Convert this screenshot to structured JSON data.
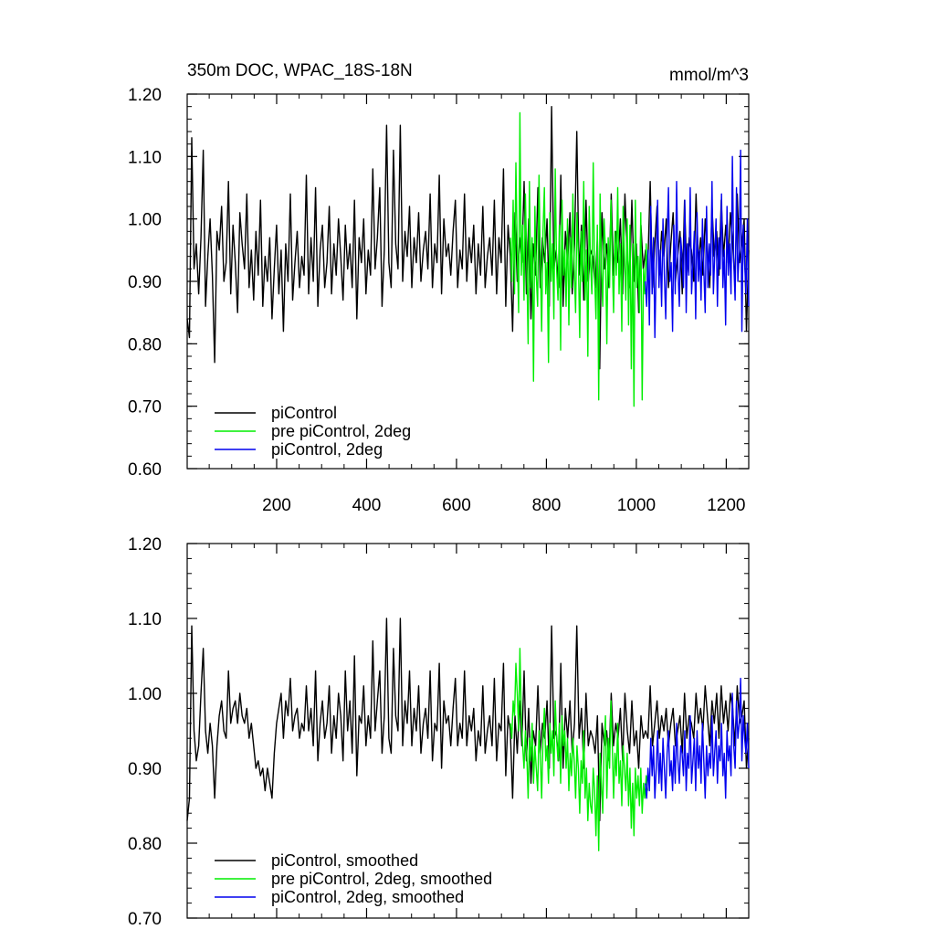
{
  "chart_data": [
    {
      "type": "line",
      "title": "350m DOC, WPAC_18S-18N",
      "units": "mmol/m^3",
      "xlabel": "",
      "ylabel": "",
      "xlim": [
        1,
        1250
      ],
      "ylim": [
        0.6,
        1.2
      ],
      "x_ticks": [
        200,
        400,
        600,
        800,
        1000,
        1200
      ],
      "x_tick_labels": [
        "200",
        "400",
        "600",
        "800",
        "1000",
        "1200"
      ],
      "y_ticks": [
        0.6,
        0.7,
        0.8,
        0.9,
        1.0,
        1.1,
        1.2
      ],
      "y_tick_labels": [
        "0.60",
        "0.70",
        "0.80",
        "0.90",
        "1.00",
        "1.10",
        "1.20"
      ],
      "legend_position": "bottom-left",
      "series": [
        {
          "name": "piControl",
          "color": "#000000",
          "x_range": [
            1,
            1250
          ],
          "spacing": 5,
          "values": [
            0.84,
            0.81,
            1.13,
            0.92,
            0.96,
            0.88,
            0.97,
            1.11,
            0.86,
            0.94,
            1.0,
            0.91,
            0.77,
            0.98,
            0.95,
            1.02,
            0.9,
            0.93,
            1.06,
            0.88,
            0.99,
            0.93,
            0.85,
            1.01,
            0.96,
            0.92,
            1.04,
            0.89,
            0.95,
            0.87,
            0.98,
            0.91,
            1.03,
            0.86,
            0.94,
            0.9,
            0.97,
            0.84,
            0.92,
            0.99,
            0.88,
            0.95,
            0.82,
            0.96,
            0.9,
            1.04,
            0.87,
            0.93,
            0.98,
            0.89,
            0.94,
            0.91,
            1.07,
            0.88,
            0.97,
            0.9,
            1.05,
            0.86,
            0.95,
            0.99,
            0.89,
            0.93,
            1.02,
            0.88,
            0.96,
            0.91,
            1.0,
            0.94,
            0.87,
            0.99,
            0.92,
            0.96,
            0.89,
            1.03,
            0.84,
            0.97,
            0.93,
            1.0,
            0.88,
            0.95,
            0.91,
            1.08,
            0.92,
            0.97,
            1.05,
            0.86,
            0.95,
            1.15,
            0.93,
            0.89,
            1.11,
            0.96,
            0.92,
            1.15,
            0.9,
            0.98,
            0.94,
            1.02,
            0.89,
            0.97,
            0.93,
            1.01,
            0.9,
            0.95,
            0.98,
            0.92,
            1.04,
            0.89,
            0.96,
            0.93,
            1.07,
            0.88,
            1.0,
            0.94,
            0.96,
            0.91,
            0.98,
            1.03,
            0.89,
            0.95,
            0.92,
            1.04,
            0.9,
            0.97,
            0.93,
            0.99,
            0.88,
            0.96,
            0.91,
            1.02,
            0.89,
            0.94,
            0.97,
            0.91,
            1.03,
            0.88,
            0.97,
            0.93,
            1.08,
            0.86,
            0.99,
            0.94,
            0.82,
            1.01,
            0.9,
            0.97,
            0.93,
            1.06,
            0.88,
            1.0,
            0.84,
            0.96,
            0.91,
            1.05,
            0.89,
            0.97,
            0.93,
            1.0,
            0.86,
            1.18,
            0.92,
            0.95,
            0.89,
            1.07,
            0.86,
            0.98,
            0.93,
            1.01,
            0.88,
            0.96,
            1.14,
            0.91,
            0.99,
            0.87,
            1.03,
            0.9,
            0.95,
            0.94,
            0.89,
            0.97,
            0.76,
            1.01,
            0.92,
            0.96,
            0.89,
            1.04,
            0.91,
            0.98,
            0.93,
            1.0,
            0.88,
            1.04,
            0.94,
            0.89,
            1.03,
            0.9,
            0.96,
            0.85,
            0.99,
            0.92,
            0.95,
            0.93,
            1.06,
            0.89,
            0.96,
            1.02,
            0.91,
            0.98,
            0.94,
            1.0,
            0.89,
            0.96,
            1.01,
            0.9,
            0.94,
            0.98,
            0.88,
            1.03,
            0.91,
            0.97,
            0.95,
            0.9,
            1.04,
            0.93,
            0.97,
            0.91,
            1.0,
            0.95,
            0.89,
            1.02,
            0.94,
            0.98,
            0.91,
            1.03,
            0.94,
            0.99,
            0.93,
            1.01,
            0.96,
            0.9,
            1.04,
            0.93,
            0.96,
            1.0,
            0.82,
            0.95
          ]
        },
        {
          "name": "pre piControl, 2deg",
          "color": "#00ee00",
          "x_range": [
            720,
            1025
          ],
          "spacing": 3,
          "values": [
            0.97,
            0.9,
            1.03,
            0.88,
            1.09,
            0.95,
            0.85,
            1.17,
            0.91,
            0.99,
            0.87,
            1.04,
            0.93,
            0.8,
            1.06,
            0.89,
            0.97,
            0.74,
            1.02,
            0.91,
            0.86,
            1.07,
            0.94,
            0.82,
            0.98,
            1.05,
            0.88,
            0.93,
            0.77,
            1.01,
            0.9,
            0.96,
            0.84,
            1.08,
            0.92,
            0.87,
            0.99,
            0.79,
            1.03,
            0.91,
            0.95,
            0.86,
            1.0,
            0.83,
            0.97,
            0.89,
            1.04,
            0.92,
            0.85,
            1.01,
            0.94,
            0.81,
            0.98,
            0.9,
            1.06,
            0.87,
            0.95,
            0.78,
            1.02,
            0.93,
            0.88,
            1.09,
            0.91,
            0.84,
            0.99,
            0.71,
            1.04,
            0.92,
            0.86,
            1.0,
            0.95,
            0.8,
            0.97,
            0.89,
            1.03,
            0.93,
            0.85,
            0.98,
            0.91,
            1.05,
            0.88,
            0.96,
            0.82,
            1.02,
            0.94,
            0.87,
            1.0,
            0.83,
            0.99,
            0.76,
            0.96,
            0.7,
            1.03,
            0.89,
            0.94,
            0.85,
            1.01,
            0.71,
            0.92,
            0.88,
            0.96,
            0.9
          ]
        },
        {
          "name": "piControl, 2deg",
          "color": "#0000ee",
          "x_range": [
            1020,
            1250
          ],
          "spacing": 3,
          "values": [
            0.9,
            0.86,
            0.95,
            0.83,
            1.02,
            0.88,
            0.97,
            0.81,
            0.93,
            1.03,
            0.89,
            0.95,
            0.86,
            1.0,
            0.91,
            0.84,
            0.97,
            1.05,
            0.9,
            0.93,
            0.82,
            0.99,
            0.88,
            1.06,
            0.92,
            0.86,
            0.97,
            0.94,
            0.89,
            1.03,
            0.85,
            0.96,
            0.91,
            1.05,
            0.88,
            0.93,
            0.98,
            0.84,
            1.01,
            0.9,
            0.95,
            0.87,
            1.0,
            0.92,
            0.85,
            1.02,
            0.89,
            0.96,
            0.91,
            1.06,
            0.88,
            0.94,
            1.0,
            0.86,
            0.97,
            0.92,
            1.04,
            0.89,
            0.95,
            0.83,
            1.02,
            0.91,
            0.96,
            0.88,
            1.1,
            0.93,
            0.87,
            1.05,
            0.9,
            0.95,
            1.11,
            0.82,
            0.99,
            0.93,
            0.88,
            1.0,
            0.86
          ]
        }
      ],
      "legend": [
        {
          "label": "piControl",
          "color": "#000000"
        },
        {
          "label": "pre piControl, 2deg",
          "color": "#00ee00"
        },
        {
          "label": "piControl, 2deg",
          "color": "#0000ee"
        }
      ]
    },
    {
      "type": "line",
      "title": "",
      "units": "",
      "xlabel": "",
      "ylabel": "",
      "xlim": [
        1,
        1250
      ],
      "ylim": [
        0.7,
        1.2
      ],
      "x_ticks": [
        200,
        400,
        600,
        800,
        1000,
        1200
      ],
      "x_tick_labels": [],
      "y_ticks": [
        0.7,
        0.8,
        0.9,
        1.0,
        1.1,
        1.2
      ],
      "y_tick_labels": [
        "0.70",
        "0.80",
        "0.90",
        "1.00",
        "1.10",
        "1.20"
      ],
      "legend_position": "bottom-left",
      "series": [
        {
          "name": "piControl, smoothed",
          "color": "#000000",
          "x_range": [
            1,
            1250
          ],
          "spacing": 5,
          "values": [
            0.83,
            0.86,
            1.09,
            0.95,
            0.91,
            0.93,
            1.0,
            1.06,
            0.95,
            0.92,
            0.96,
            0.93,
            0.86,
            0.93,
            0.97,
            0.99,
            0.95,
            0.94,
            1.03,
            0.96,
            0.98,
            0.99,
            0.96,
            1.0,
            0.97,
            0.96,
            0.98,
            0.94,
            0.96,
            0.93,
            0.9,
            0.91,
            0.89,
            0.9,
            0.87,
            0.9,
            0.88,
            0.86,
            0.92,
            0.96,
            0.98,
            1.0,
            0.94,
            0.99,
            0.97,
            1.02,
            0.95,
            0.97,
            0.98,
            0.94,
            0.96,
            0.95,
            1.01,
            0.95,
            0.98,
            0.93,
            1.03,
            0.91,
            0.96,
            0.99,
            0.94,
            0.96,
            1.01,
            0.92,
            0.97,
            0.94,
            1.0,
            0.97,
            0.91,
            1.03,
            0.95,
            0.99,
            0.92,
            1.05,
            0.89,
            0.97,
            0.96,
            1.01,
            0.93,
            0.97,
            0.94,
            1.07,
            0.95,
            0.99,
            1.03,
            0.92,
            0.97,
            1.1,
            0.94,
            0.92,
            1.06,
            0.97,
            0.95,
            1.1,
            0.93,
            0.99,
            0.96,
            1.03,
            0.93,
            0.98,
            0.95,
            1.01,
            0.92,
            0.96,
            0.98,
            0.94,
            1.03,
            0.91,
            0.96,
            0.95,
            1.04,
            0.9,
            0.99,
            0.96,
            0.97,
            0.93,
            0.98,
            1.02,
            0.93,
            0.96,
            0.94,
            1.03,
            0.93,
            0.97,
            0.95,
            0.98,
            0.91,
            0.95,
            0.93,
            1.01,
            0.92,
            0.95,
            0.97,
            0.93,
            1.02,
            0.91,
            0.96,
            0.95,
            1.04,
            0.89,
            0.97,
            0.95,
            0.86,
            0.97,
            0.92,
            0.99,
            0.93,
            1.03,
            0.91,
            0.98,
            0.88,
            0.95,
            0.93,
            1.01,
            0.92,
            0.96,
            0.94,
            0.99,
            0.9,
            1.09,
            0.94,
            0.95,
            0.91,
            1.04,
            0.9,
            0.98,
            0.94,
            0.99,
            0.92,
            0.96,
            1.09,
            0.94,
            0.98,
            0.9,
            1.0,
            0.93,
            0.95,
            0.94,
            0.92,
            0.97,
            0.83,
            0.96,
            0.93,
            0.95,
            0.91,
            1.0,
            0.93,
            0.96,
            0.94,
            0.98,
            0.91,
            1.0,
            0.95,
            0.92,
            0.99,
            0.93,
            0.95,
            0.9,
            0.97,
            0.94,
            0.95,
            0.94,
            1.01,
            0.93,
            0.96,
            0.99,
            0.94,
            0.97,
            0.95,
            0.98,
            0.93,
            0.96,
            0.98,
            0.93,
            0.95,
            0.97,
            0.92,
            1.0,
            0.94,
            0.97,
            0.96,
            0.94,
            1.0,
            0.96,
            0.98,
            0.95,
            1.01,
            0.97,
            0.93,
            0.99,
            0.96,
            1.0,
            0.94,
            1.01,
            0.96,
            0.99,
            0.95,
            1.0,
            0.98,
            0.93,
            1.01,
            0.96,
            0.97,
            0.99,
            0.9,
            0.94
          ]
        },
        {
          "name": "pre piControl, 2deg, smoothed",
          "color": "#00ee00",
          "x_range": [
            720,
            1025
          ],
          "spacing": 3,
          "values": [
            0.96,
            0.94,
            0.99,
            0.97,
            1.04,
            1.0,
            0.95,
            1.06,
            0.97,
            0.93,
            0.9,
            0.95,
            0.92,
            0.86,
            0.94,
            0.91,
            0.96,
            0.88,
            0.93,
            0.9,
            0.87,
            0.95,
            0.92,
            0.86,
            0.94,
            0.98,
            0.91,
            0.93,
            0.88,
            0.96,
            0.92,
            0.95,
            0.89,
            0.99,
            0.94,
            0.91,
            0.96,
            0.88,
            0.97,
            0.93,
            0.95,
            0.9,
            0.94,
            0.87,
            0.92,
            0.89,
            0.94,
            0.91,
            0.86,
            0.93,
            0.9,
            0.84,
            0.91,
            0.88,
            0.95,
            0.86,
            0.9,
            0.83,
            0.88,
            0.85,
            0.84,
            0.9,
            0.87,
            0.81,
            0.89,
            0.79,
            0.92,
            0.88,
            0.84,
            0.93,
            0.97,
            0.86,
            0.94,
            0.9,
            0.99,
            0.93,
            0.86,
            0.92,
            0.89,
            0.96,
            0.88,
            0.91,
            0.85,
            0.93,
            0.9,
            0.87,
            0.92,
            0.85,
            0.9,
            0.82,
            0.88,
            0.81,
            0.9,
            0.86,
            0.89,
            0.85,
            0.9,
            0.84,
            0.88,
            0.86,
            0.89,
            0.87
          ]
        },
        {
          "name": "piControl, 2deg, smoothed",
          "color": "#0000ee",
          "x_range": [
            1020,
            1250
          ],
          "spacing": 3,
          "values": [
            0.88,
            0.86,
            0.9,
            0.87,
            0.94,
            0.89,
            0.93,
            0.86,
            0.9,
            0.95,
            0.88,
            0.92,
            0.87,
            0.94,
            0.9,
            0.86,
            0.92,
            0.95,
            0.89,
            0.91,
            0.87,
            0.93,
            0.88,
            0.96,
            0.91,
            0.88,
            0.93,
            0.92,
            0.89,
            0.95,
            0.87,
            0.92,
            0.9,
            0.97,
            0.88,
            0.91,
            0.94,
            0.87,
            0.95,
            0.9,
            0.93,
            0.88,
            0.96,
            0.91,
            0.86,
            0.93,
            0.89,
            0.92,
            0.9,
            0.97,
            0.89,
            0.92,
            0.95,
            0.88,
            0.93,
            0.91,
            0.96,
            0.89,
            0.92,
            0.86,
            0.95,
            0.91,
            0.93,
            0.89,
            1.0,
            0.93,
            0.9,
            0.99,
            0.94,
            0.96,
            1.02,
            0.91,
            0.97,
            0.94,
            0.92,
            0.96,
            0.9
          ]
        }
      ],
      "legend": [
        {
          "label": "piControl, smoothed",
          "color": "#000000"
        },
        {
          "label": "pre piControl, 2deg, smoothed",
          "color": "#00ee00"
        },
        {
          "label": "piControl, 2deg, smoothed",
          "color": "#0000ee"
        }
      ]
    }
  ]
}
